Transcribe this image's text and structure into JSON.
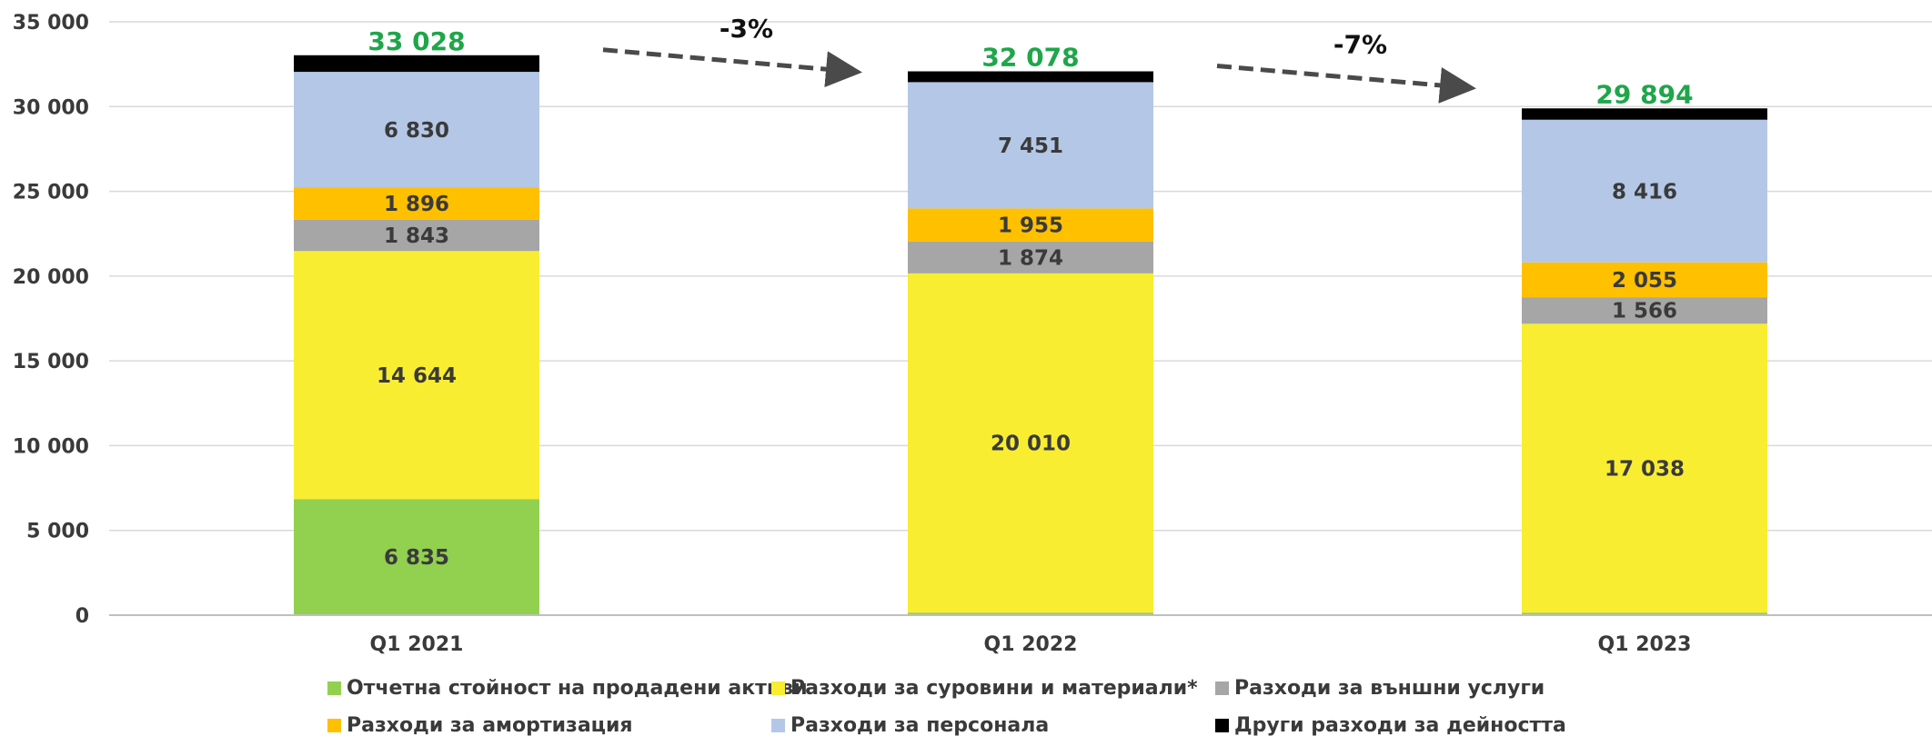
{
  "chart_data": {
    "type": "bar",
    "stacked": true,
    "categories": [
      "Q1 2021",
      "Q1 2022",
      "Q1 2023"
    ],
    "ylim": [
      0,
      35000
    ],
    "yticks": [
      0,
      5000,
      10000,
      15000,
      20000,
      25000,
      30000,
      35000
    ],
    "ytick_labels": [
      "0",
      "5 000",
      "10 000",
      "15 000",
      "20 000",
      "25 000",
      "30 000",
      "35 000"
    ],
    "grid": true,
    "legend_position": "bottom",
    "series": [
      {
        "name": "Отчетна стойност на продадени активи",
        "color": "#92d050",
        "values": [
          6835,
          150,
          150
        ],
        "labels": [
          "6 835",
          "",
          ""
        ]
      },
      {
        "name": "Разходи за суровини и материали*",
        "color": "#f9ed32",
        "values": [
          14644,
          20010,
          17038
        ],
        "labels": [
          "14 644",
          "20 010",
          "17 038"
        ]
      },
      {
        "name": "Разходи за външни услуги",
        "color": "#a6a6a6",
        "values": [
          1843,
          1874,
          1566
        ],
        "labels": [
          "1 843",
          "1 874",
          "1 566"
        ]
      },
      {
        "name": "Разходи за амортизация",
        "color": "#ffc000",
        "values": [
          1896,
          1955,
          2055
        ],
        "labels": [
          "1 896",
          "1 955",
          "2 055"
        ]
      },
      {
        "name": "Разходи за персонала",
        "color": "#b4c7e7",
        "values": [
          6830,
          7451,
          8416
        ],
        "labels": [
          "6 830",
          "7 451",
          "8 416"
        ]
      },
      {
        "name": "Други разходи за дейността",
        "color": "#000000",
        "values": [
          980,
          638,
          669
        ],
        "labels": [
          "",
          "",
          ""
        ]
      }
    ],
    "totals": [
      33028,
      32078,
      29894
    ],
    "total_labels": [
      "33 028",
      "32 078",
      "29 894"
    ],
    "total_color": "#1fa64a",
    "annotations": [
      {
        "text": "-3%",
        "from_category": 0,
        "to_category": 1
      },
      {
        "text": "-7%",
        "from_category": 1,
        "to_category": 2
      }
    ]
  }
}
